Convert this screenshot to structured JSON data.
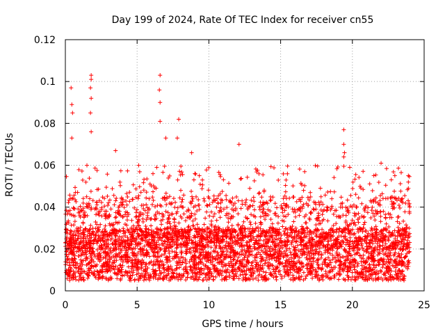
{
  "chart_data": {
    "type": "scatter",
    "title": "Day 199 of 2024, Rate Of TEC Index for receiver cn55",
    "xlabel": "GPS time / hours",
    "ylabel": "ROTI / TECUs",
    "xlim": [
      0,
      25
    ],
    "ylim": [
      0,
      0.12
    ],
    "xticks": [
      0,
      5,
      10,
      15,
      20,
      25
    ],
    "xtick_labels": [
      "0",
      "5",
      "10",
      "15",
      "20",
      "25"
    ],
    "yticks": [
      0,
      0.02,
      0.04,
      0.06,
      0.08,
      0.1,
      0.12
    ],
    "ytick_labels": [
      "0",
      "0.02",
      "0.04",
      "0.06",
      "0.08",
      "0.1",
      "0.12"
    ],
    "grid": true,
    "marker": "+",
    "color": "#ff0000",
    "series": [
      {
        "name": "ROTI",
        "x_range_hours": [
          0,
          24
        ],
        "baseline_band": [
          0.005,
          0.03
        ],
        "notable_points": [
          {
            "x": 0.4,
            "y": 0.097
          },
          {
            "x": 0.45,
            "y": 0.089
          },
          {
            "x": 0.5,
            "y": 0.085
          },
          {
            "x": 0.45,
            "y": 0.073
          },
          {
            "x": 1.8,
            "y": 0.103
          },
          {
            "x": 1.8,
            "y": 0.101
          },
          {
            "x": 1.75,
            "y": 0.097
          },
          {
            "x": 1.8,
            "y": 0.092
          },
          {
            "x": 1.75,
            "y": 0.085
          },
          {
            "x": 1.8,
            "y": 0.076
          },
          {
            "x": 3.5,
            "y": 0.067
          },
          {
            "x": 6.6,
            "y": 0.103
          },
          {
            "x": 6.55,
            "y": 0.096
          },
          {
            "x": 6.6,
            "y": 0.09
          },
          {
            "x": 6.6,
            "y": 0.081
          },
          {
            "x": 7.0,
            "y": 0.073
          },
          {
            "x": 7.9,
            "y": 0.082
          },
          {
            "x": 7.8,
            "y": 0.073
          },
          {
            "x": 8.8,
            "y": 0.066
          },
          {
            "x": 12.1,
            "y": 0.07
          },
          {
            "x": 19.4,
            "y": 0.077
          },
          {
            "x": 19.4,
            "y": 0.07
          },
          {
            "x": 19.45,
            "y": 0.066
          },
          {
            "x": 19.4,
            "y": 0.064
          },
          {
            "x": 22.0,
            "y": 0.061
          },
          {
            "x": 23.9,
            "y": 0.055
          },
          {
            "x": 23.9,
            "y": 0.052
          },
          {
            "x": 23.9,
            "y": 0.049
          }
        ]
      }
    ]
  }
}
